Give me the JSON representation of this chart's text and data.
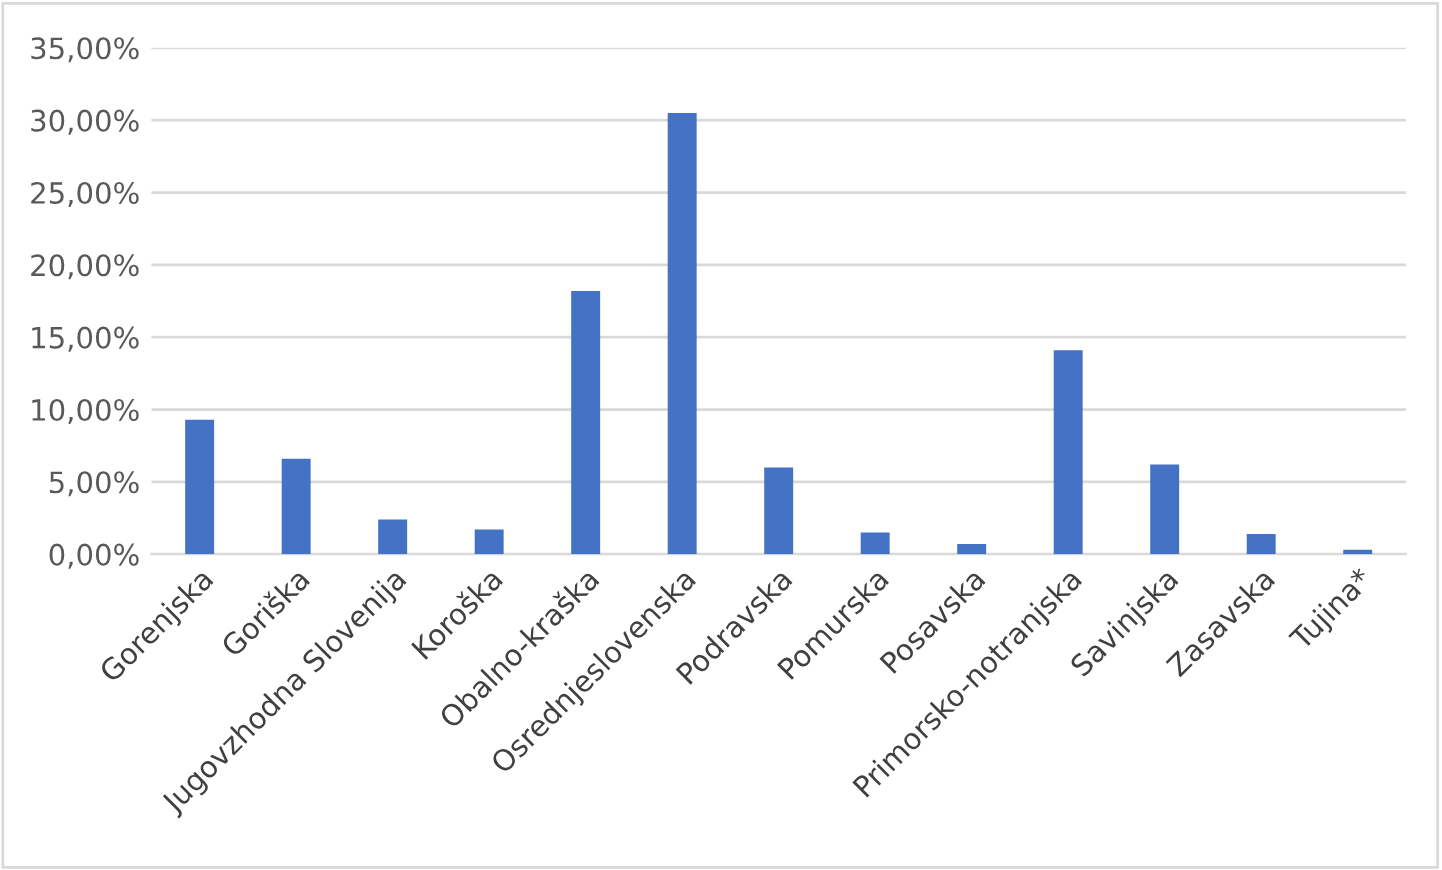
{
  "chart_data": {
    "type": "bar",
    "categories": [
      "Gorenjska",
      "Goriška",
      "Jugovzhodna Slovenija",
      "Koroška",
      "Obalno-kraška",
      "Osrednjeslovenska",
      "Podravska",
      "Pomurska",
      "Posavska",
      "Primorsko-notranjska",
      "Savinjska",
      "Zasavska",
      "Tujina*"
    ],
    "values": [
      9.3,
      6.6,
      2.4,
      1.7,
      18.2,
      30.5,
      6.0,
      1.5,
      0.7,
      14.1,
      6.2,
      1.4,
      0.3
    ],
    "color": "#4472c4",
    "ylim": [
      0,
      35
    ],
    "yticks": [
      {
        "value": 0,
        "label": "0,00%"
      },
      {
        "value": 5,
        "label": "5,00%"
      },
      {
        "value": 10,
        "label": "10,00%"
      },
      {
        "value": 15,
        "label": "15,00%"
      },
      {
        "value": 20,
        "label": "20,00%"
      },
      {
        "value": 25,
        "label": "25,00%"
      },
      {
        "value": 30,
        "label": "30,00%"
      },
      {
        "value": 35,
        "label": "35,00%"
      }
    ],
    "grid": "y",
    "legend": false
  }
}
